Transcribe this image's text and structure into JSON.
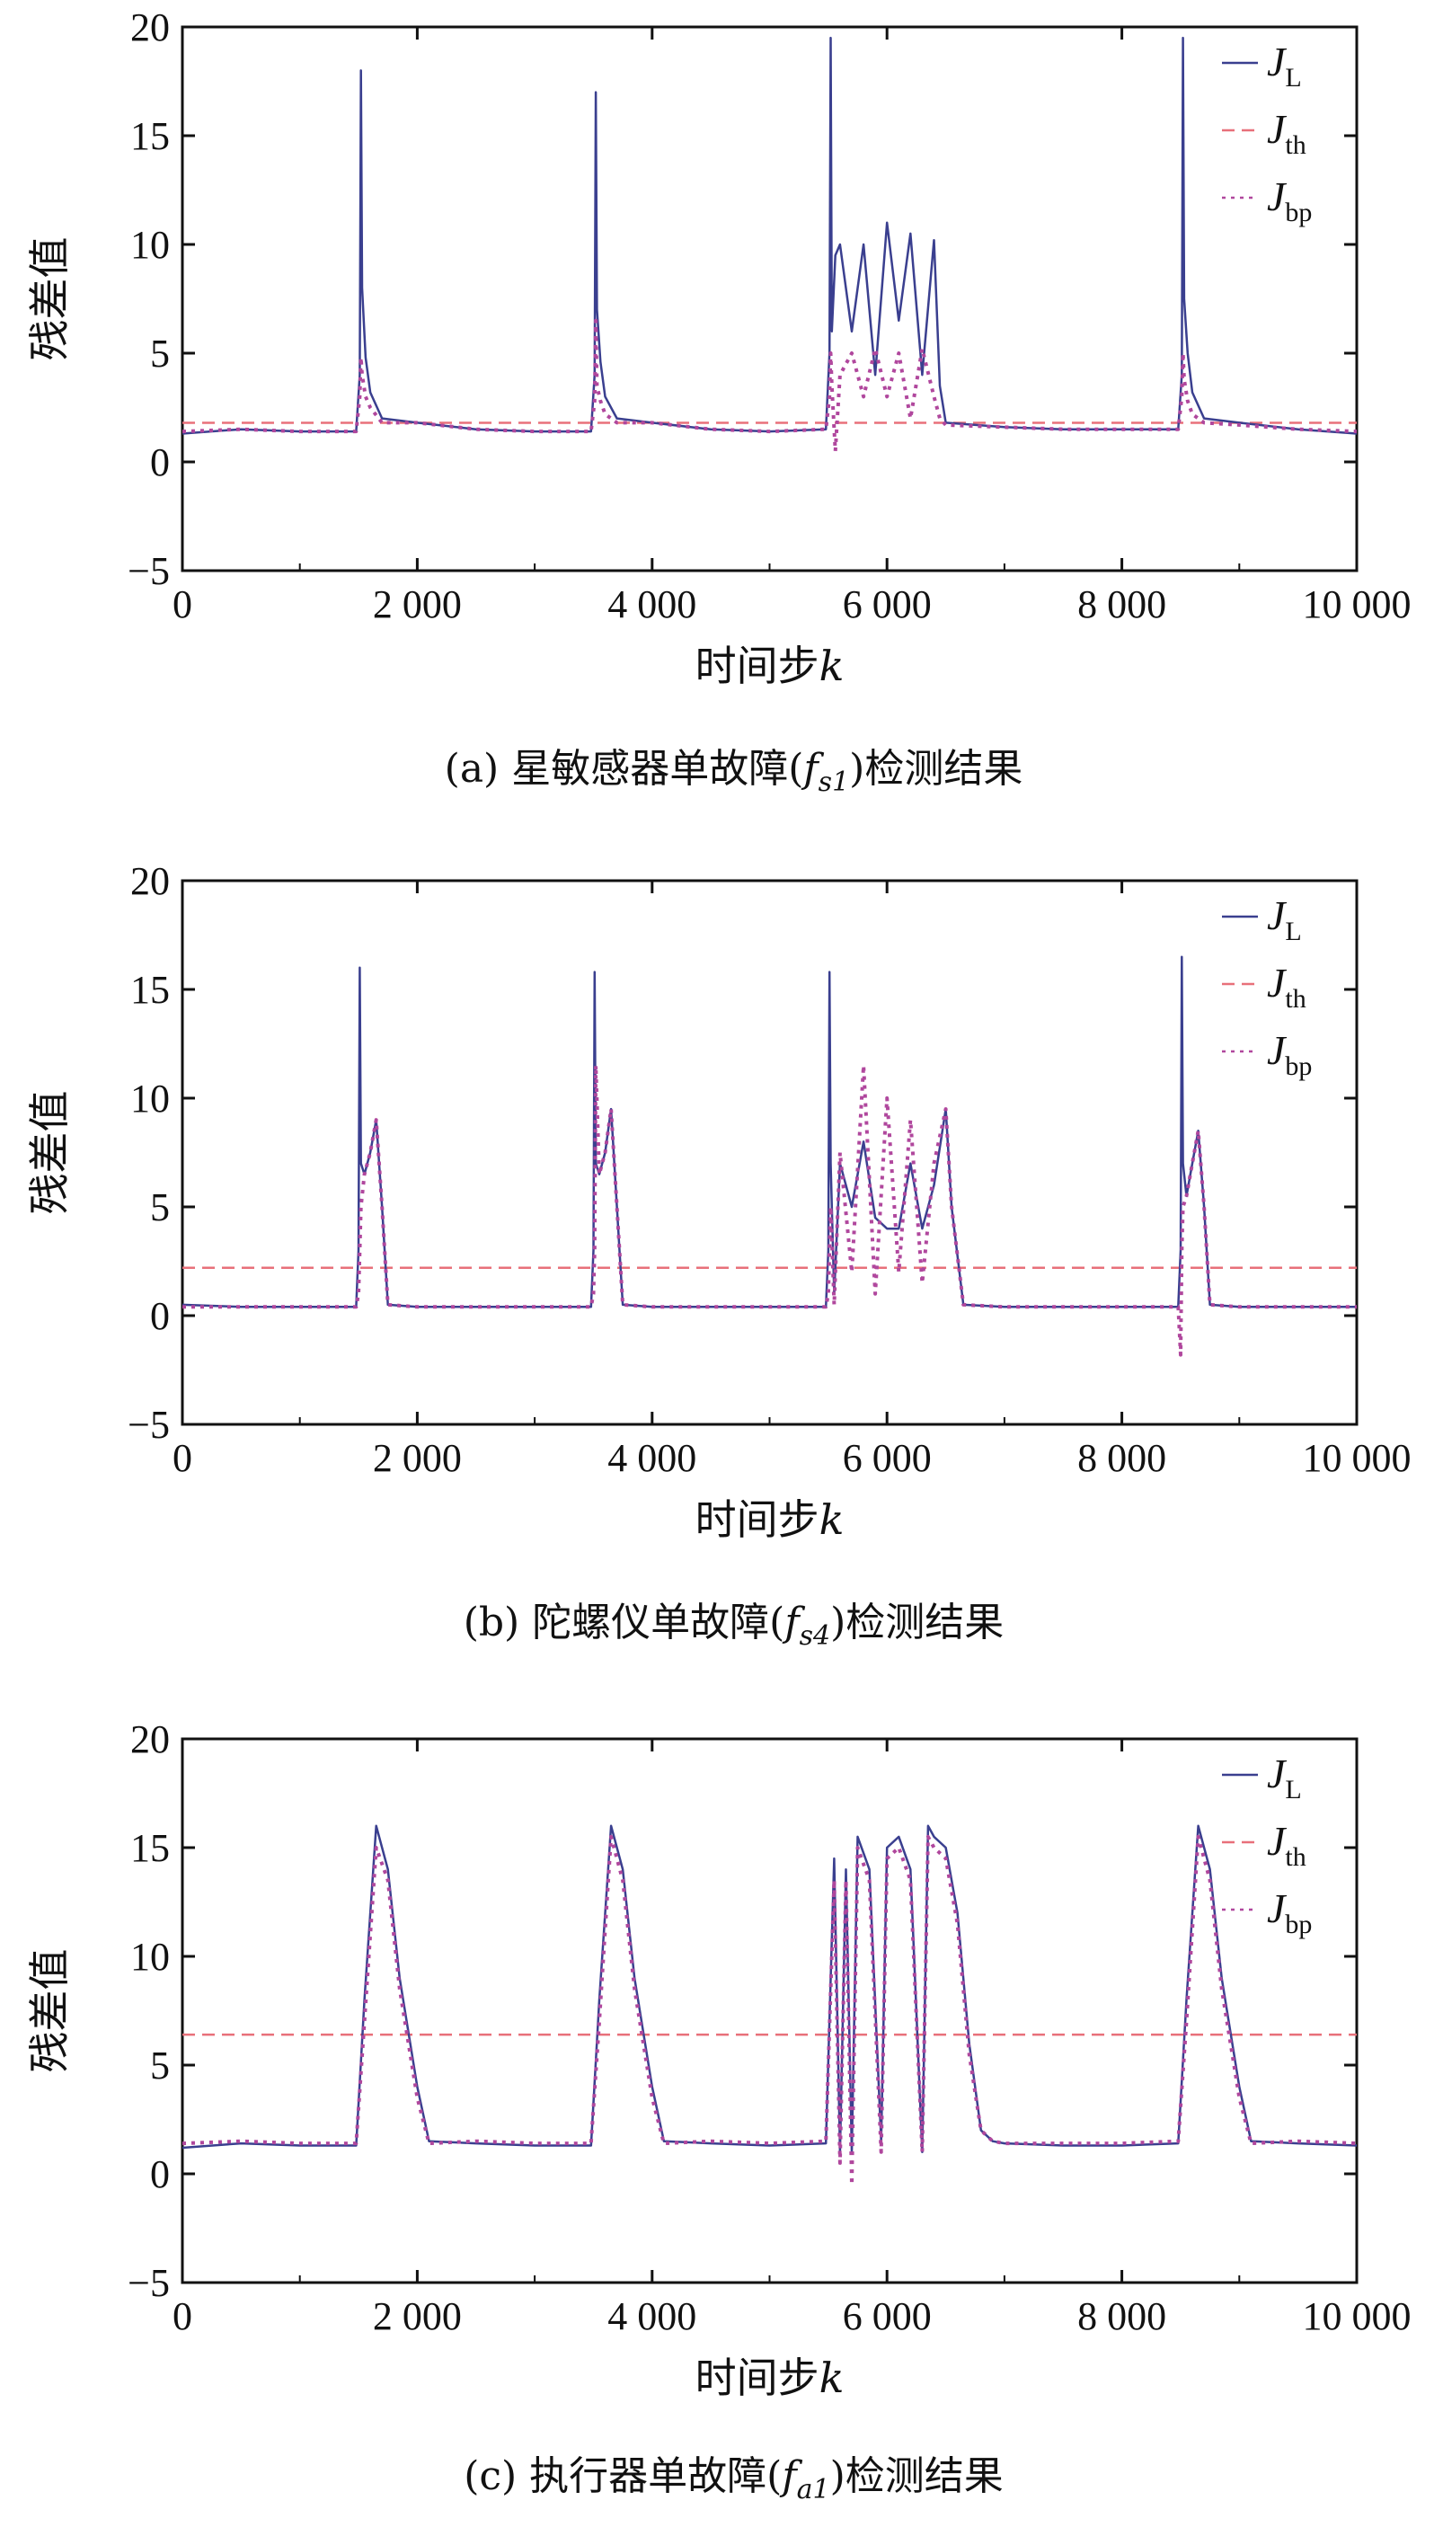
{
  "chart_data": [
    {
      "type": "line",
      "caption": "(a) 星敏感器单故障(fs1)检测结果",
      "caption_prefix": "(a) 星敏感器单故障(",
      "caption_var": "f",
      "caption_sub": "s1",
      "caption_suffix": ")检测结果",
      "xlabel": "时间步",
      "xlabel_var": "k",
      "ylabel": "残差值",
      "xlim": [
        0,
        10000
      ],
      "ylim": [
        -5,
        20
      ],
      "xticks": [
        0,
        2000,
        4000,
        6000,
        8000,
        10000
      ],
      "xtick_labels": [
        "0",
        "2 000",
        "4 000",
        "6 000",
        "8 000",
        "10 000"
      ],
      "yticks": [
        -5,
        0,
        5,
        10,
        15,
        20
      ],
      "ytick_labels": [
        "−5",
        "0",
        "5",
        "10",
        "15",
        "20"
      ],
      "legend_position": "top-right",
      "threshold": 1.8,
      "series": [
        {
          "name": "JL",
          "label_main": "J",
          "label_sub": "L",
          "color": "#3a3f8f",
          "style": "solid"
        },
        {
          "name": "Jth",
          "label_main": "J",
          "label_sub": "th",
          "color": "#e8707a",
          "style": "dashed"
        },
        {
          "name": "Jbp",
          "label_main": "J",
          "label_sub": "bp",
          "color": "#b0479d",
          "style": "dotted"
        }
      ],
      "x": [
        0,
        500,
        1000,
        1480,
        1510,
        1520,
        1530,
        1560,
        1600,
        1700,
        2000,
        2500,
        3000,
        3480,
        3510,
        3520,
        3530,
        3560,
        3600,
        3700,
        4000,
        4500,
        5000,
        5480,
        5510,
        5520,
        5530,
        5560,
        5600,
        5700,
        5800,
        5900,
        6000,
        6100,
        6200,
        6300,
        6400,
        6450,
        6500,
        7000,
        7500,
        8000,
        8480,
        8510,
        8520,
        8530,
        8560,
        8600,
        8700,
        9000,
        9500,
        10000
      ],
      "JL": [
        1.3,
        1.5,
        1.4,
        1.4,
        4.0,
        18.0,
        8.0,
        4.8,
        3.2,
        2.0,
        1.8,
        1.5,
        1.4,
        1.4,
        4.0,
        17.0,
        7.0,
        4.6,
        3.0,
        2.0,
        1.8,
        1.5,
        1.4,
        1.5,
        5.0,
        19.5,
        6.0,
        9.5,
        10.0,
        6.0,
        10.0,
        4.0,
        11.0,
        6.5,
        10.5,
        4.0,
        10.2,
        3.5,
        1.8,
        1.6,
        1.5,
        1.5,
        1.5,
        4.0,
        19.5,
        7.5,
        5.0,
        3.2,
        2.0,
        1.8,
        1.5,
        1.3
      ],
      "Jbp": [
        1.4,
        1.5,
        1.4,
        1.4,
        3.0,
        4.8,
        4.0,
        3.0,
        2.5,
        1.8,
        1.8,
        1.5,
        1.4,
        1.4,
        2.8,
        6.5,
        3.5,
        2.8,
        2.2,
        1.8,
        1.8,
        1.5,
        1.4,
        1.5,
        3.0,
        5.0,
        3.5,
        0.5,
        4.0,
        5.0,
        3.0,
        5.2,
        3.0,
        5.0,
        2.0,
        5.2,
        3.0,
        2.0,
        1.7,
        1.6,
        1.5,
        1.5,
        1.5,
        3.0,
        5.0,
        3.8,
        2.8,
        2.2,
        1.8,
        1.7,
        1.5,
        1.4
      ]
    },
    {
      "type": "line",
      "caption": "(b) 陀螺仪单故障(fs4)检测结果",
      "caption_prefix": "(b) 陀螺仪单故障(",
      "caption_var": "f",
      "caption_sub": "s4",
      "caption_suffix": ")检测结果",
      "xlabel": "时间步",
      "xlabel_var": "k",
      "ylabel": "残差值",
      "xlim": [
        0,
        10000
      ],
      "ylim": [
        -5,
        20
      ],
      "xticks": [
        0,
        2000,
        4000,
        6000,
        8000,
        10000
      ],
      "xtick_labels": [
        "0",
        "2 000",
        "4 000",
        "6 000",
        "8 000",
        "10 000"
      ],
      "yticks": [
        -5,
        0,
        5,
        10,
        15,
        20
      ],
      "ytick_labels": [
        "−5",
        "0",
        "5",
        "10",
        "15",
        "20"
      ],
      "legend_position": "top-right",
      "threshold": 2.2,
      "series": [
        {
          "name": "JL",
          "label_main": "J",
          "label_sub": "L",
          "color": "#3a3f8f",
          "style": "solid"
        },
        {
          "name": "Jth",
          "label_main": "J",
          "label_sub": "th",
          "color": "#e8707a",
          "style": "dashed"
        },
        {
          "name": "Jbp",
          "label_main": "J",
          "label_sub": "bp",
          "color": "#b0479d",
          "style": "dotted"
        }
      ],
      "x": [
        0,
        500,
        1000,
        1480,
        1500,
        1510,
        1520,
        1550,
        1600,
        1650,
        1700,
        1750,
        2000,
        2500,
        3000,
        3480,
        3500,
        3510,
        3520,
        3550,
        3600,
        3650,
        3700,
        3750,
        4000,
        4500,
        5000,
        5480,
        5500,
        5510,
        5520,
        5550,
        5600,
        5700,
        5800,
        5900,
        6000,
        6100,
        6200,
        6300,
        6400,
        6500,
        6550,
        6650,
        7000,
        7500,
        8000,
        8480,
        8500,
        8510,
        8520,
        8550,
        8600,
        8650,
        8700,
        8750,
        9000,
        9500,
        10000
      ],
      "JL": [
        0.5,
        0.4,
        0.4,
        0.4,
        3.0,
        16.0,
        7.0,
        6.5,
        7.5,
        9.0,
        5.0,
        0.5,
        0.4,
        0.4,
        0.4,
        0.4,
        3.0,
        15.8,
        7.0,
        6.5,
        7.5,
        9.5,
        5.0,
        0.5,
        0.4,
        0.4,
        0.4,
        0.4,
        3.0,
        15.8,
        7.0,
        1.0,
        7.0,
        5.0,
        8.0,
        4.5,
        4.0,
        4.0,
        7.0,
        4.0,
        6.0,
        9.5,
        5.0,
        0.5,
        0.4,
        0.4,
        0.4,
        0.4,
        3.0,
        16.5,
        7.0,
        5.5,
        7.0,
        8.5,
        5.0,
        0.5,
        0.4,
        0.4,
        0.4
      ],
      "Jbp": [
        0.4,
        0.4,
        0.4,
        0.4,
        1.0,
        3.0,
        5.0,
        6.5,
        7.5,
        9.0,
        5.0,
        0.5,
        0.4,
        0.4,
        0.4,
        0.4,
        1.0,
        3.0,
        11.5,
        6.5,
        7.5,
        9.5,
        5.0,
        0.5,
        0.4,
        0.4,
        0.4,
        0.4,
        1.0,
        3.0,
        5.0,
        0.5,
        7.5,
        2.0,
        11.5,
        1.0,
        10.0,
        2.0,
        9.0,
        1.5,
        7.0,
        9.5,
        5.0,
        0.5,
        0.4,
        0.4,
        0.4,
        0.4,
        -1.8,
        3.0,
        5.0,
        5.5,
        7.0,
        8.5,
        5.0,
        0.5,
        0.4,
        0.4,
        0.4
      ]
    },
    {
      "type": "line",
      "caption": "(c) 执行器单故障(fa1)检测结果",
      "caption_prefix": "(c) 执行器单故障(",
      "caption_var": "f",
      "caption_sub": "a1",
      "caption_suffix": ")检测结果",
      "xlabel": "时间步",
      "xlabel_var": "k",
      "ylabel": "残差值",
      "xlim": [
        0,
        10000
      ],
      "ylim": [
        -5,
        20
      ],
      "xticks": [
        0,
        2000,
        4000,
        6000,
        8000,
        10000
      ],
      "xtick_labels": [
        "0",
        "2 000",
        "4 000",
        "6 000",
        "8 000",
        "10 000"
      ],
      "yticks": [
        -5,
        0,
        5,
        10,
        15,
        20
      ],
      "ytick_labels": [
        "−5",
        "0",
        "5",
        "10",
        "15",
        "20"
      ],
      "legend_position": "top-right",
      "threshold": 6.4,
      "series": [
        {
          "name": "JL",
          "label_main": "J",
          "label_sub": "L",
          "color": "#3a3f8f",
          "style": "solid"
        },
        {
          "name": "Jth",
          "label_main": "J",
          "label_sub": "th",
          "color": "#e8707a",
          "style": "dashed"
        },
        {
          "name": "Jbp",
          "label_main": "J",
          "label_sub": "bp",
          "color": "#b0479d",
          "style": "dotted"
        }
      ],
      "x": [
        0,
        500,
        1000,
        1480,
        1550,
        1650,
        1750,
        1850,
        2000,
        2100,
        2500,
        3000,
        3480,
        3550,
        3650,
        3750,
        3850,
        4000,
        4100,
        4500,
        5000,
        5480,
        5550,
        5600,
        5650,
        5700,
        5750,
        5850,
        5950,
        6000,
        6100,
        6200,
        6300,
        6350,
        6400,
        6500,
        6600,
        6700,
        6800,
        6900,
        7000,
        7500,
        8000,
        8480,
        8550,
        8650,
        8750,
        8850,
        9000,
        9100,
        9500,
        10000
      ],
      "JL": [
        1.2,
        1.4,
        1.3,
        1.3,
        8.0,
        16.0,
        14.0,
        9.0,
        4.0,
        1.5,
        1.4,
        1.3,
        1.3,
        8.0,
        16.0,
        14.0,
        9.0,
        4.0,
        1.5,
        1.4,
        1.3,
        1.4,
        14.5,
        1.0,
        14.0,
        1.0,
        15.5,
        14.0,
        1.5,
        15.0,
        15.5,
        14.0,
        1.0,
        16.0,
        15.5,
        15.0,
        12.0,
        6.0,
        2.0,
        1.5,
        1.4,
        1.3,
        1.3,
        1.4,
        8.0,
        16.0,
        14.0,
        9.0,
        4.0,
        1.5,
        1.4,
        1.3
      ],
      "Jbp": [
        1.4,
        1.5,
        1.4,
        1.4,
        7.0,
        15.0,
        13.5,
        8.5,
        3.5,
        1.4,
        1.5,
        1.4,
        1.4,
        7.0,
        15.5,
        13.5,
        8.5,
        3.5,
        1.4,
        1.5,
        1.4,
        1.5,
        13.5,
        0.5,
        13.5,
        -0.5,
        15.0,
        13.5,
        1.0,
        14.5,
        15.0,
        13.5,
        1.0,
        15.5,
        15.0,
        14.5,
        11.5,
        5.5,
        2.0,
        1.5,
        1.4,
        1.4,
        1.4,
        1.5,
        7.0,
        15.5,
        13.5,
        8.5,
        3.5,
        1.4,
        1.5,
        1.4
      ]
    }
  ]
}
